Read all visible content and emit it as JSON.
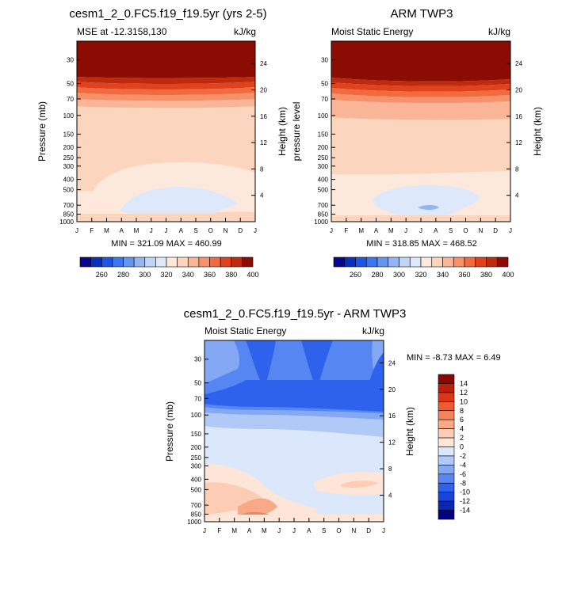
{
  "panels": {
    "left": {
      "title": "cesm1_2_0.FC5.f19_f19.5yr (yrs 2-5)",
      "left_string": "MSE at -12.3158,130",
      "right_string": "kJ/kg",
      "ylabel": "Pressure (mb)",
      "y2label": "Height (km)",
      "minmax": "MIN = 321.09 MAX = 460.99"
    },
    "right": {
      "title": "ARM TWP3",
      "left_string": "Moist Static Energy",
      "right_string": "kJ/kg",
      "ylabel": "pressure level",
      "y2label": "Height (km)",
      "minmax": "MIN = 318.85 MAX = 468.52"
    },
    "diff": {
      "title": "cesm1_2_0.FC5.f19_f19.5yr - ARM TWP3",
      "left_string": "Moist Static Energy",
      "right_string": "kJ/kg",
      "ylabel": "Pressure (mb)",
      "y2label": "Height (km)",
      "minmax": "MIN =  -8.73 MAX =   6.49"
    }
  },
  "colors": {
    "mse": [
      "#08088a",
      "#0a2fb8",
      "#1f55e0",
      "#3d76ee",
      "#6496f0",
      "#93b6f2",
      "#bfd4f6",
      "#dde9fb",
      "#fde9dc",
      "#fcd5be",
      "#f9b595",
      "#f7916a",
      "#f26a40",
      "#e0421d",
      "#bd2a10",
      "#8b0c02"
    ],
    "diff": [
      "#030384",
      "#0b26b4",
      "#1644dc",
      "#2e62ec",
      "#5586f2",
      "#84a8f4",
      "#b0c9f7",
      "#dbe8fc",
      "#fde6d8",
      "#fccdb4",
      "#f9a988",
      "#f6835c",
      "#f05a32",
      "#db3617",
      "#b81f0c",
      "#8a0803"
    ]
  },
  "chart_data": [
    {
      "type": "contour",
      "name": "model",
      "months": [
        "J",
        "F",
        "M",
        "A",
        "M",
        "J",
        "J",
        "A",
        "S",
        "O",
        "N",
        "D",
        "J"
      ],
      "pressure_ticks": [
        30,
        50,
        70,
        100,
        150,
        200,
        250,
        300,
        400,
        500,
        700,
        850,
        1000
      ],
      "height_ticks": [
        4,
        8,
        12,
        16,
        20,
        24
      ],
      "ylim_mb": [
        1000,
        20
      ],
      "colorbar_levels": [
        250,
        260,
        270,
        280,
        290,
        300,
        310,
        320,
        330,
        340,
        350,
        360,
        370,
        380,
        390,
        400
      ],
      "colorbar_labels": [
        260,
        280,
        300,
        320,
        340,
        360,
        380,
        400
      ],
      "min": 321.09,
      "max": 460.99
    },
    {
      "type": "contour",
      "name": "obs",
      "months": [
        "J",
        "F",
        "M",
        "A",
        "M",
        "J",
        "J",
        "A",
        "S",
        "O",
        "N",
        "D",
        "J"
      ],
      "pressure_ticks": [
        30,
        50,
        70,
        100,
        150,
        200,
        250,
        300,
        400,
        500,
        700,
        850,
        1000
      ],
      "height_ticks": [
        4,
        8,
        12,
        16,
        20,
        24
      ],
      "ylim_mb": [
        1000,
        20
      ],
      "colorbar_levels": [
        250,
        260,
        270,
        280,
        290,
        300,
        310,
        320,
        330,
        340,
        350,
        360,
        370,
        380,
        390,
        400
      ],
      "colorbar_labels": [
        260,
        280,
        300,
        320,
        340,
        360,
        380,
        400
      ],
      "min": 318.85,
      "max": 468.52
    },
    {
      "type": "contour",
      "name": "difference",
      "months": [
        "J",
        "F",
        "M",
        "A",
        "M",
        "J",
        "J",
        "A",
        "S",
        "O",
        "N",
        "D",
        "J"
      ],
      "pressure_ticks": [
        30,
        50,
        70,
        100,
        150,
        200,
        250,
        300,
        400,
        500,
        700,
        850,
        1000
      ],
      "height_ticks": [
        4,
        8,
        12,
        16,
        20,
        24
      ],
      "ylim_mb": [
        1000,
        20
      ],
      "colorbar_labels": [
        14,
        12,
        10,
        8,
        6,
        4,
        2,
        0,
        -2,
        -4,
        -6,
        -8,
        -10,
        -12,
        -14
      ],
      "min": -8.73,
      "max": 6.49
    }
  ]
}
